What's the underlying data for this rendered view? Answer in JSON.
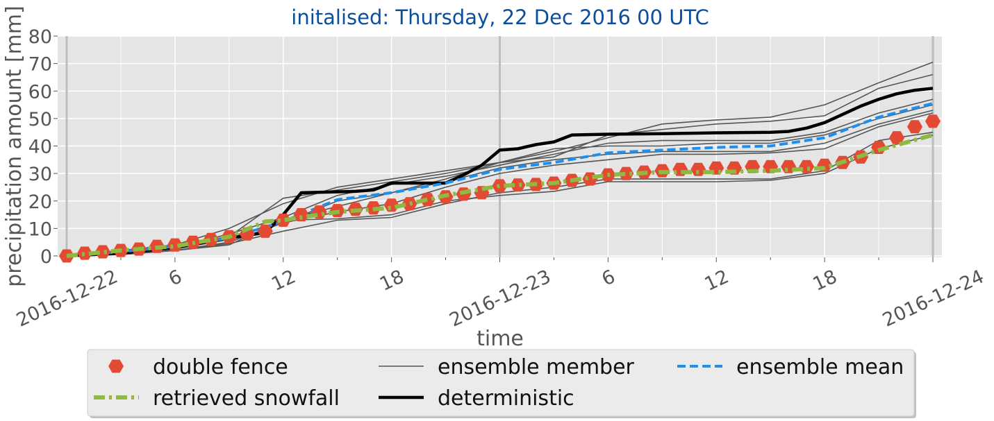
{
  "chart_data": {
    "type": "line",
    "title": "initalised: Thursday, 22 Dec 2016 00 UTC",
    "x_label": "time",
    "y_label": "precipitation amount [mm]",
    "xlim": [
      -0.5,
      48.5
    ],
    "ylim": [
      0,
      80
    ],
    "yticks": [
      0,
      10,
      20,
      30,
      40,
      50,
      60,
      70,
      80
    ],
    "xticks": [
      {
        "value": 0,
        "label": "2016-12-22"
      },
      6,
      12,
      18,
      {
        "value": 24,
        "label": "2016-12-23"
      },
      {
        "value": 30,
        "label": "6"
      },
      {
        "value": 36,
        "label": "12"
      },
      {
        "value": 42,
        "label": "18"
      },
      {
        "value": 48,
        "label": "2016-12-24"
      }
    ],
    "xminorticks": [
      3,
      9,
      15,
      21,
      27,
      33,
      39,
      45
    ],
    "grid": true,
    "legend": "lower center",
    "series": [
      {
        "name": "double fence",
        "color": "#E24A33",
        "marker": "hexagon",
        "linestyle": "none",
        "x": [
          0,
          1,
          2,
          3,
          4,
          5,
          6,
          7,
          8,
          9,
          10,
          11,
          12,
          13,
          14,
          15,
          16,
          17,
          18,
          19,
          20,
          21,
          22,
          23,
          24,
          25,
          26,
          27,
          28,
          29,
          30,
          31,
          32,
          33,
          34,
          35,
          36,
          37,
          38,
          39,
          40,
          41,
          42,
          43,
          44,
          45,
          46,
          47,
          48
        ],
        "values": [
          0,
          1,
          1.5,
          2,
          2.5,
          3.5,
          4,
          5,
          6,
          7,
          8,
          9,
          13,
          15,
          16,
          16.5,
          17,
          17.5,
          18.5,
          19,
          20.5,
          21.5,
          22.5,
          23,
          25.5,
          25.8,
          26,
          26.5,
          27.5,
          28,
          29.5,
          30,
          30.5,
          31,
          31.5,
          31.5,
          32,
          32,
          32.5,
          32.5,
          32.5,
          32.5,
          33,
          34,
          36,
          39.5,
          43,
          47,
          49
        ]
      },
      {
        "name": "retrieved snowfall",
        "color": "#8EBA42",
        "linestyle": "dashdot",
        "x": [
          0,
          3,
          6,
          9,
          11,
          12,
          15,
          18,
          21,
          24,
          27,
          30,
          33,
          36,
          39,
          42,
          45,
          48
        ],
        "values": [
          0,
          2,
          3.5,
          7,
          12.5,
          13,
          16,
          17.5,
          22,
          25.5,
          26.5,
          29.5,
          30.5,
          30.5,
          31,
          32,
          38.5,
          44
        ]
      },
      {
        "name": "ensemble member",
        "color": "#555555",
        "linestyle": "solid",
        "x": [
          0,
          3,
          6,
          9,
          12,
          15,
          18,
          21,
          24,
          27,
          30,
          33,
          36,
          39,
          42,
          45,
          48
        ],
        "members": [
          [
            0,
            2,
            4,
            7,
            21,
            24,
            27,
            30,
            34,
            38,
            43,
            48,
            49.5,
            50.5,
            55,
            63,
            70.5
          ],
          [
            0,
            1.5,
            4,
            10,
            19,
            25,
            28,
            31,
            34,
            36,
            44,
            46,
            48,
            49,
            51,
            61,
            66
          ],
          [
            0,
            1,
            3,
            8,
            14,
            22,
            26,
            29,
            33,
            37,
            41,
            42,
            42,
            42,
            45,
            52,
            57
          ],
          [
            0,
            1,
            3,
            7,
            12,
            20,
            23,
            28,
            34,
            39,
            40,
            40,
            41,
            41,
            44,
            50,
            55
          ],
          [
            0,
            1,
            2.5,
            6,
            13,
            18,
            23,
            27,
            32,
            35,
            37,
            38,
            38,
            38,
            41,
            48,
            53
          ],
          [
            0,
            0.5,
            2,
            5,
            12,
            16,
            19,
            25,
            30,
            33,
            35,
            37,
            37,
            37.5,
            39,
            47,
            52
          ],
          [
            0,
            0.5,
            2,
            4.5,
            9,
            13,
            14,
            19,
            23,
            25,
            28,
            28,
            28,
            28,
            31,
            42,
            45
          ],
          [
            0,
            0.5,
            2,
            4,
            13,
            13.5,
            15,
            20,
            22,
            23.5,
            27,
            27,
            27,
            27.5,
            30,
            39,
            44
          ]
        ]
      },
      {
        "name": "deterministic",
        "color": "#000000",
        "linestyle": "solid",
        "x": [
          0,
          3,
          6,
          9,
          10,
          11,
          12,
          13,
          16,
          17,
          18,
          21,
          22,
          23,
          24,
          25,
          26,
          27,
          28,
          30,
          33,
          36,
          39,
          40,
          41,
          42,
          43,
          44,
          45,
          46,
          47,
          48
        ],
        "values": [
          0,
          1,
          3,
          6.5,
          7.5,
          8.5,
          15,
          23,
          23.5,
          24,
          26.5,
          26.5,
          29.5,
          33,
          38.5,
          39,
          40.5,
          41.5,
          44,
          44.3,
          44.5,
          44.8,
          45,
          45.3,
          46.5,
          48.5,
          51.5,
          54.5,
          57,
          59,
          60.3,
          61
        ]
      },
      {
        "name": "ensemble mean",
        "color": "#1E8FEF",
        "linestyle": "dashed",
        "x": [
          0,
          3,
          6,
          9,
          12,
          15,
          18,
          21,
          24,
          27,
          30,
          33,
          36,
          39,
          42,
          45,
          48
        ],
        "values": [
          0,
          1.5,
          3.5,
          6.5,
          12.5,
          20.5,
          23,
          26.5,
          31.5,
          34,
          37.5,
          38.5,
          39.5,
          40,
          43,
          50.5,
          55.5
        ]
      }
    ]
  }
}
